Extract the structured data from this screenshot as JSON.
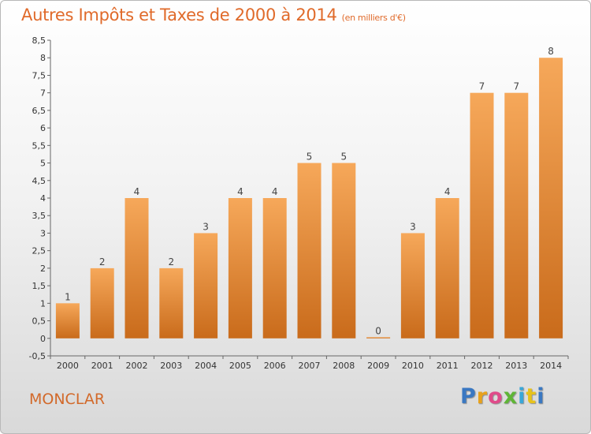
{
  "title": "Autres Impôts et Taxes de 2000 à 2014",
  "unit_note": "(en milliers d'€)",
  "commune": "MONCLAR",
  "logo_text": "Proxiti",
  "colors": {
    "bar_light": "#f6a85a",
    "bar_dark": "#c96b1b",
    "title": "#e06a2a",
    "axis": "#666666"
  },
  "chart_data": {
    "type": "bar",
    "title": "Autres Impôts et Taxes de 2000 à 2014",
    "xlabel": "",
    "ylabel": "",
    "categories": [
      "2000",
      "2001",
      "2002",
      "2003",
      "2004",
      "2005",
      "2006",
      "2007",
      "2008",
      "2009",
      "2010",
      "2011",
      "2012",
      "2013",
      "2014"
    ],
    "values": [
      1,
      2,
      4,
      2,
      3,
      4,
      4,
      5,
      5,
      0,
      3,
      4,
      7,
      7,
      8
    ],
    "value_labels": [
      "1",
      "2",
      "4",
      "2",
      "3",
      "4",
      "4",
      "5",
      "5",
      "0",
      "3",
      "4",
      "7",
      "7",
      "8"
    ],
    "ylim": [
      -0.5,
      8.5
    ],
    "yticks": [
      -0.5,
      0,
      0.5,
      1,
      1.5,
      2,
      2.5,
      3,
      3.5,
      4,
      4.5,
      5,
      5.5,
      6,
      6.5,
      7,
      7.5,
      8,
      8.5
    ],
    "ytick_labels": [
      "-0,5",
      "0",
      "0,5",
      "1",
      "1,5",
      "2",
      "2,5",
      "3",
      "3,5",
      "4",
      "4,5",
      "5",
      "5,5",
      "6",
      "6,5",
      "7",
      "7,5",
      "8",
      "8,5"
    ],
    "grid": false,
    "legend": "none"
  }
}
